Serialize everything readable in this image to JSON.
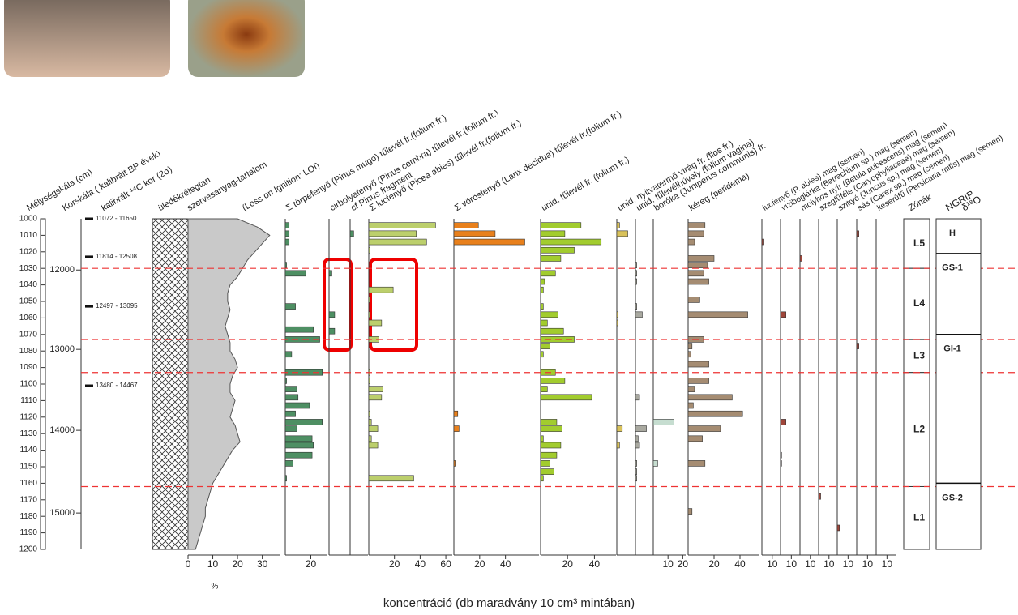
{
  "chart_data": {
    "type": "stratigraphic",
    "xlabel": "koncentráció (db maradvány 10 cm³ mintában)",
    "depth_axis": {
      "label": "Mélységskála (cm)",
      "ylim": [
        1000,
        1200
      ],
      "yticks": [
        1000,
        1010,
        1020,
        1030,
        1040,
        1050,
        1060,
        1070,
        1080,
        1090,
        1100,
        1110,
        1120,
        1130,
        1140,
        1150,
        1160,
        1170,
        1180,
        1190,
        1200
      ]
    },
    "age_axis": {
      "label": "Korskála ( kalibrált BP évek)",
      "ticks": [
        12000,
        13000,
        14000,
        15000
      ],
      "tick_depths": [
        1031,
        1079,
        1128,
        1178
      ]
    },
    "c14_dates": {
      "label": "kalibrált ¹⁴C kor (2σ)",
      "labels": [
        "11072 - 11650",
        "11814 - 12508",
        "12497 - 13095",
        "13480 - 14467"
      ],
      "depths": [
        1000,
        1023,
        1053,
        1101
      ]
    },
    "lithology": {
      "label": "üledékrétegtan"
    },
    "loi": {
      "label": "szervesanyag-tartalom",
      "label2": "(Loss on Ignition: LOI)",
      "xlabel": "%",
      "xlim": [
        0,
        37
      ],
      "xticks": [
        0,
        10,
        20,
        30
      ],
      "depths": [
        1000,
        1005,
        1010,
        1015,
        1020,
        1025,
        1030,
        1035,
        1040,
        1045,
        1050,
        1055,
        1060,
        1065,
        1070,
        1075,
        1080,
        1085,
        1090,
        1095,
        1100,
        1105,
        1110,
        1115,
        1120,
        1125,
        1130,
        1135,
        1140,
        1145,
        1150,
        1155,
        1160,
        1165,
        1170,
        1175,
        1180,
        1185,
        1190,
        1195,
        1200
      ],
      "values": [
        20,
        28,
        33,
        30,
        27,
        24,
        22,
        20,
        17,
        16,
        16,
        17,
        16,
        15,
        16,
        17,
        17,
        19,
        20,
        18,
        17,
        17,
        19,
        18,
        17,
        19,
        20,
        21,
        18,
        16,
        14,
        12,
        10,
        9,
        8,
        7,
        7,
        6,
        5,
        4,
        3
      ]
    },
    "panels": [
      {
        "name": "Σ törpefenyő (Pinus mugo) tűlevél fr.(folium fr.)",
        "color": "#4e8f63",
        "xlim": [
          0,
          33
        ],
        "xticks": [
          20
        ],
        "depths": [
          1004,
          1009,
          1014,
          1028,
          1033,
          1053,
          1067,
          1073,
          1082,
          1093,
          1098,
          1103,
          1108,
          1113,
          1118,
          1123,
          1127,
          1133,
          1137,
          1143,
          1148,
          1157
        ],
        "values": [
          3,
          3,
          3,
          1,
          16,
          8,
          22,
          27,
          5,
          29,
          1,
          9,
          10,
          19,
          8,
          29,
          9,
          21,
          22,
          21,
          6,
          1
        ]
      },
      {
        "name": "cirbolyafenyő (Pinus cembra) tűlevél fr.(folium fr.)",
        "color": "#4e8f63",
        "xlim": [
          0,
          15
        ],
        "xticks": [],
        "depths": [
          1033,
          1058,
          1068
        ],
        "values": [
          2,
          4,
          4
        ]
      },
      {
        "name": "cf Pinus fragment",
        "color": "#4e8f63",
        "xlim": [
          0,
          15
        ],
        "xticks": [],
        "depths": [
          1009
        ],
        "values": [
          3
        ]
      },
      {
        "name": "Σ lucfenyő (Picea abies) tűlevél fr.(folium fr.)",
        "color": "#bccf6c",
        "xlim": [
          0,
          65
        ],
        "xticks": [
          20,
          40,
          60
        ],
        "depths": [
          1004,
          1009,
          1014,
          1019,
          1043,
          1049,
          1058,
          1063,
          1073,
          1093,
          1098,
          1103,
          1108,
          1118,
          1123,
          1127,
          1133,
          1137,
          1157
        ],
        "values": [
          52,
          37,
          45,
          1,
          19,
          1,
          1,
          10,
          8,
          1,
          1,
          11,
          10,
          1,
          2,
          7,
          2,
          7,
          35
        ]
      },
      {
        "name": "Σ vörösfenyő (Larix decidua) tűlevél fr.(folium fr.)",
        "color": "#e8801c",
        "xlim": [
          0,
          66
        ],
        "xticks": [
          20,
          40
        ],
        "depths": [
          1004,
          1009,
          1014,
          1118,
          1127,
          1148
        ],
        "values": [
          19,
          32,
          55,
          3,
          4,
          1
        ]
      },
      {
        "name": "unid. tűlevél fr. (folium fr.)",
        "color": "#a2cc2e",
        "xlim": [
          0,
          56
        ],
        "xticks": [
          20,
          40
        ],
        "depths": [
          1004,
          1009,
          1014,
          1019,
          1024,
          1033,
          1038,
          1043,
          1053,
          1058,
          1063,
          1068,
          1073,
          1077,
          1082,
          1093,
          1098,
          1103,
          1108,
          1123,
          1127,
          1133,
          1137,
          1143,
          1148,
          1153,
          1157
        ],
        "values": [
          30,
          18,
          45,
          25,
          15,
          11,
          3,
          2,
          2,
          13,
          5,
          17,
          25,
          7,
          2,
          11,
          18,
          5,
          38,
          12,
          16,
          2,
          15,
          12,
          7,
          10,
          2
        ]
      },
      {
        "name": "unid. nyitvatermő virág fr. (flos fr.)",
        "color": "#d9c25a",
        "xlim": [
          0,
          13
        ],
        "xticks": [],
        "depths": [
          1004,
          1009,
          1058,
          1063,
          1127,
          1137
        ],
        "values": [
          2,
          8,
          1,
          1,
          4,
          2
        ]
      },
      {
        "name": "unid. tűlevélhüvely (folium vagina)",
        "color": "#a9a9a0",
        "xlim": [
          0,
          13
        ],
        "xticks": [],
        "depths": [
          1028,
          1033,
          1038,
          1053,
          1058,
          1108,
          1127,
          1133,
          1137,
          1148,
          1153,
          1157
        ],
        "values": [
          1,
          1,
          1,
          1,
          5,
          3,
          8,
          2,
          3,
          1,
          1,
          1
        ]
      },
      {
        "name": "boróka (Juniperus communis) fr.",
        "color": "#c6ddd0",
        "xlim": [
          0,
          22
        ],
        "xticks": [
          10,
          20
        ],
        "depths": [
          1123,
          1148
        ],
        "values": [
          14,
          3
        ]
      },
      {
        "name": "kéreg (peridema)",
        "color": "#a58c72",
        "xlim": [
          0,
          55
        ],
        "xticks": [
          20,
          40
        ],
        "depths": [
          1004,
          1009,
          1014,
          1024,
          1028,
          1033,
          1038,
          1049,
          1058,
          1073,
          1077,
          1082,
          1088,
          1098,
          1103,
          1108,
          1113,
          1118,
          1127,
          1133,
          1148,
          1177
        ],
        "values": [
          13,
          12,
          5,
          20,
          15,
          12,
          16,
          9,
          46,
          12,
          3,
          2,
          16,
          16,
          5,
          34,
          4,
          42,
          25,
          11,
          13,
          3
        ]
      },
      {
        "name": "lucfenyő (P. abies) mag (semen)",
        "color": "#a0463a",
        "xlim": [
          0,
          18
        ],
        "xticks": [
          10
        ],
        "depths": [
          1014
        ],
        "values": [
          2
        ]
      },
      {
        "name": "víziboglárka (Batrachium sp.) mag (semen)",
        "color": "#a0463a",
        "xlim": [
          0,
          18
        ],
        "xticks": [
          10
        ],
        "depths": [
          1058,
          1123,
          1143,
          1148
        ],
        "values": [
          5,
          5,
          1,
          1
        ]
      },
      {
        "name": "molyhos nyír (Betula pubescens) mag (semen)",
        "color": "#a0463a",
        "xlim": [
          0,
          18
        ],
        "xticks": [
          10
        ],
        "depths": [
          1024
        ],
        "values": [
          2
        ]
      },
      {
        "name": "szegfűféle (Caryophyllaceae) mag (semen)",
        "color": "#a0463a",
        "xlim": [
          0,
          18
        ],
        "xticks": [
          10
        ],
        "depths": [
          1168
        ],
        "values": [
          2
        ]
      },
      {
        "name": "szittyó (Juncus sp.) mag (semen)",
        "color": "#a0463a",
        "xlim": [
          0,
          18
        ],
        "xticks": [
          10
        ],
        "depths": [
          1187
        ],
        "values": [
          2
        ]
      },
      {
        "name": "sás (Carex sp.) mag (semen)",
        "color": "#a0463a",
        "xlim": [
          0,
          18
        ],
        "xticks": [
          10
        ],
        "depths": [
          1009,
          1077
        ],
        "values": [
          2,
          2
        ]
      },
      {
        "name": "keserűfű (Persicaria mitis) mag (semen)",
        "color": "#a0463a",
        "xlim": [
          0,
          18
        ],
        "xticks": [
          10
        ],
        "depths": [],
        "values": []
      }
    ],
    "zones": {
      "title": "Zónák",
      "names": [
        "L5",
        "L4",
        "L3",
        "L2",
        "L1"
      ],
      "bounds": [
        1000,
        1030,
        1073,
        1093,
        1162,
        1200
      ]
    },
    "ngrip": {
      "title": "NGRIP",
      "subtitle": "δ¹⁸O",
      "names": [
        "H",
        "GS-1",
        "GI-1",
        "GS-2"
      ],
      "bounds": [
        1000,
        1021,
        1070,
        1160,
        1200
      ]
    }
  }
}
